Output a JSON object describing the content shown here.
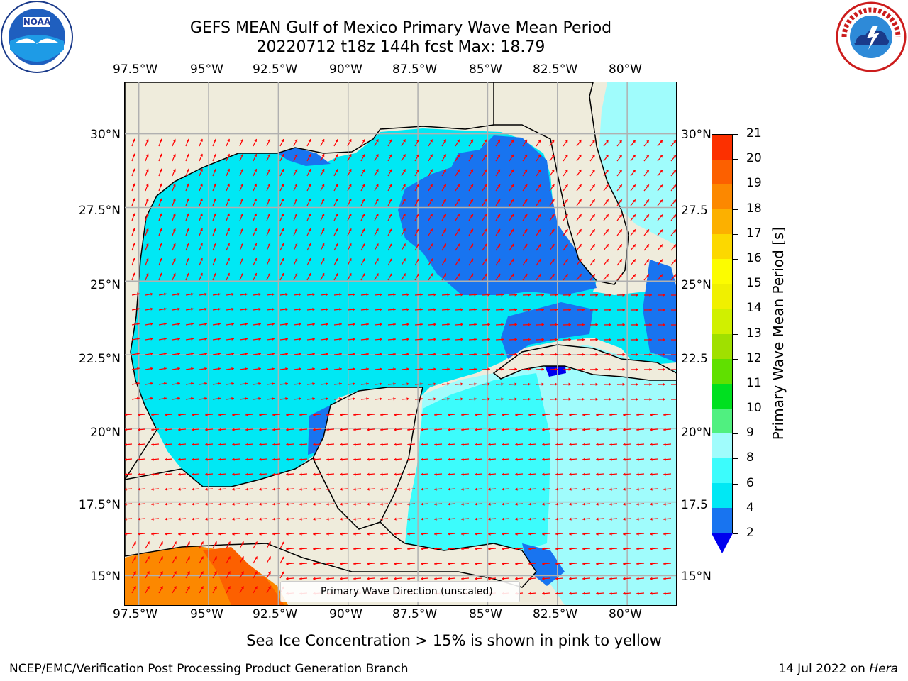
{
  "header": {
    "title_line1": "GEFS MEAN Gulf of Mexico Primary Wave Mean Period",
    "title_line2": "20220712 t18z 144h fcst   Max: 18.79"
  },
  "logos": {
    "left": "noaa-logo",
    "right": "nws-logo"
  },
  "axes": {
    "x_ticks": [
      "97.5°W",
      "95°W",
      "92.5°W",
      "90°W",
      "87.5°W",
      "85°W",
      "82.5°W",
      "80°W"
    ],
    "y_ticks": [
      "30°N",
      "27.5°N",
      "25°N",
      "22.5°N",
      "20°N",
      "17.5°N",
      "15°N"
    ],
    "y_ticks_right": [
      "30°N",
      "27.5",
      "25°N",
      "22.5",
      "20°N",
      "17.5",
      "15°N"
    ],
    "lon_range": [
      -98,
      -78.25
    ],
    "lat_range": [
      14,
      31.75
    ]
  },
  "legend": {
    "label": "Primary Wave Direction (unscaled)"
  },
  "colorbar": {
    "title": "Primary Wave Mean Period [s]",
    "levels": [
      "2",
      "4",
      "6",
      "8",
      "9",
      "10",
      "11",
      "12",
      "13",
      "14",
      "15",
      "16",
      "17",
      "18",
      "19",
      "20",
      "21"
    ],
    "colors": [
      "#1874f0",
      "#00e8f4",
      "#3cfcfc",
      "#a0fcfc",
      "#50f080",
      "#00e020",
      "#60e000",
      "#a0e000",
      "#d0f000",
      "#f0f000",
      "#fcfc00",
      "#fcd800",
      "#fcb000",
      "#fc8800",
      "#fc6000",
      "#fc3000",
      "#fc0000"
    ],
    "under_color": "#0000ee"
  },
  "map_colors": {
    "land": "#efecdc",
    "coast": "#000000",
    "grid": "#b0b0b0",
    "arrow": "#ff0000"
  },
  "note": "Sea Ice Concentration > 15% is shown in pink to yellow",
  "footer": {
    "left": "NCEP/EMC/Verification Post Processing Product Generation Branch",
    "right_date": "14 Jul 2022 on ",
    "right_host": "Hera"
  }
}
